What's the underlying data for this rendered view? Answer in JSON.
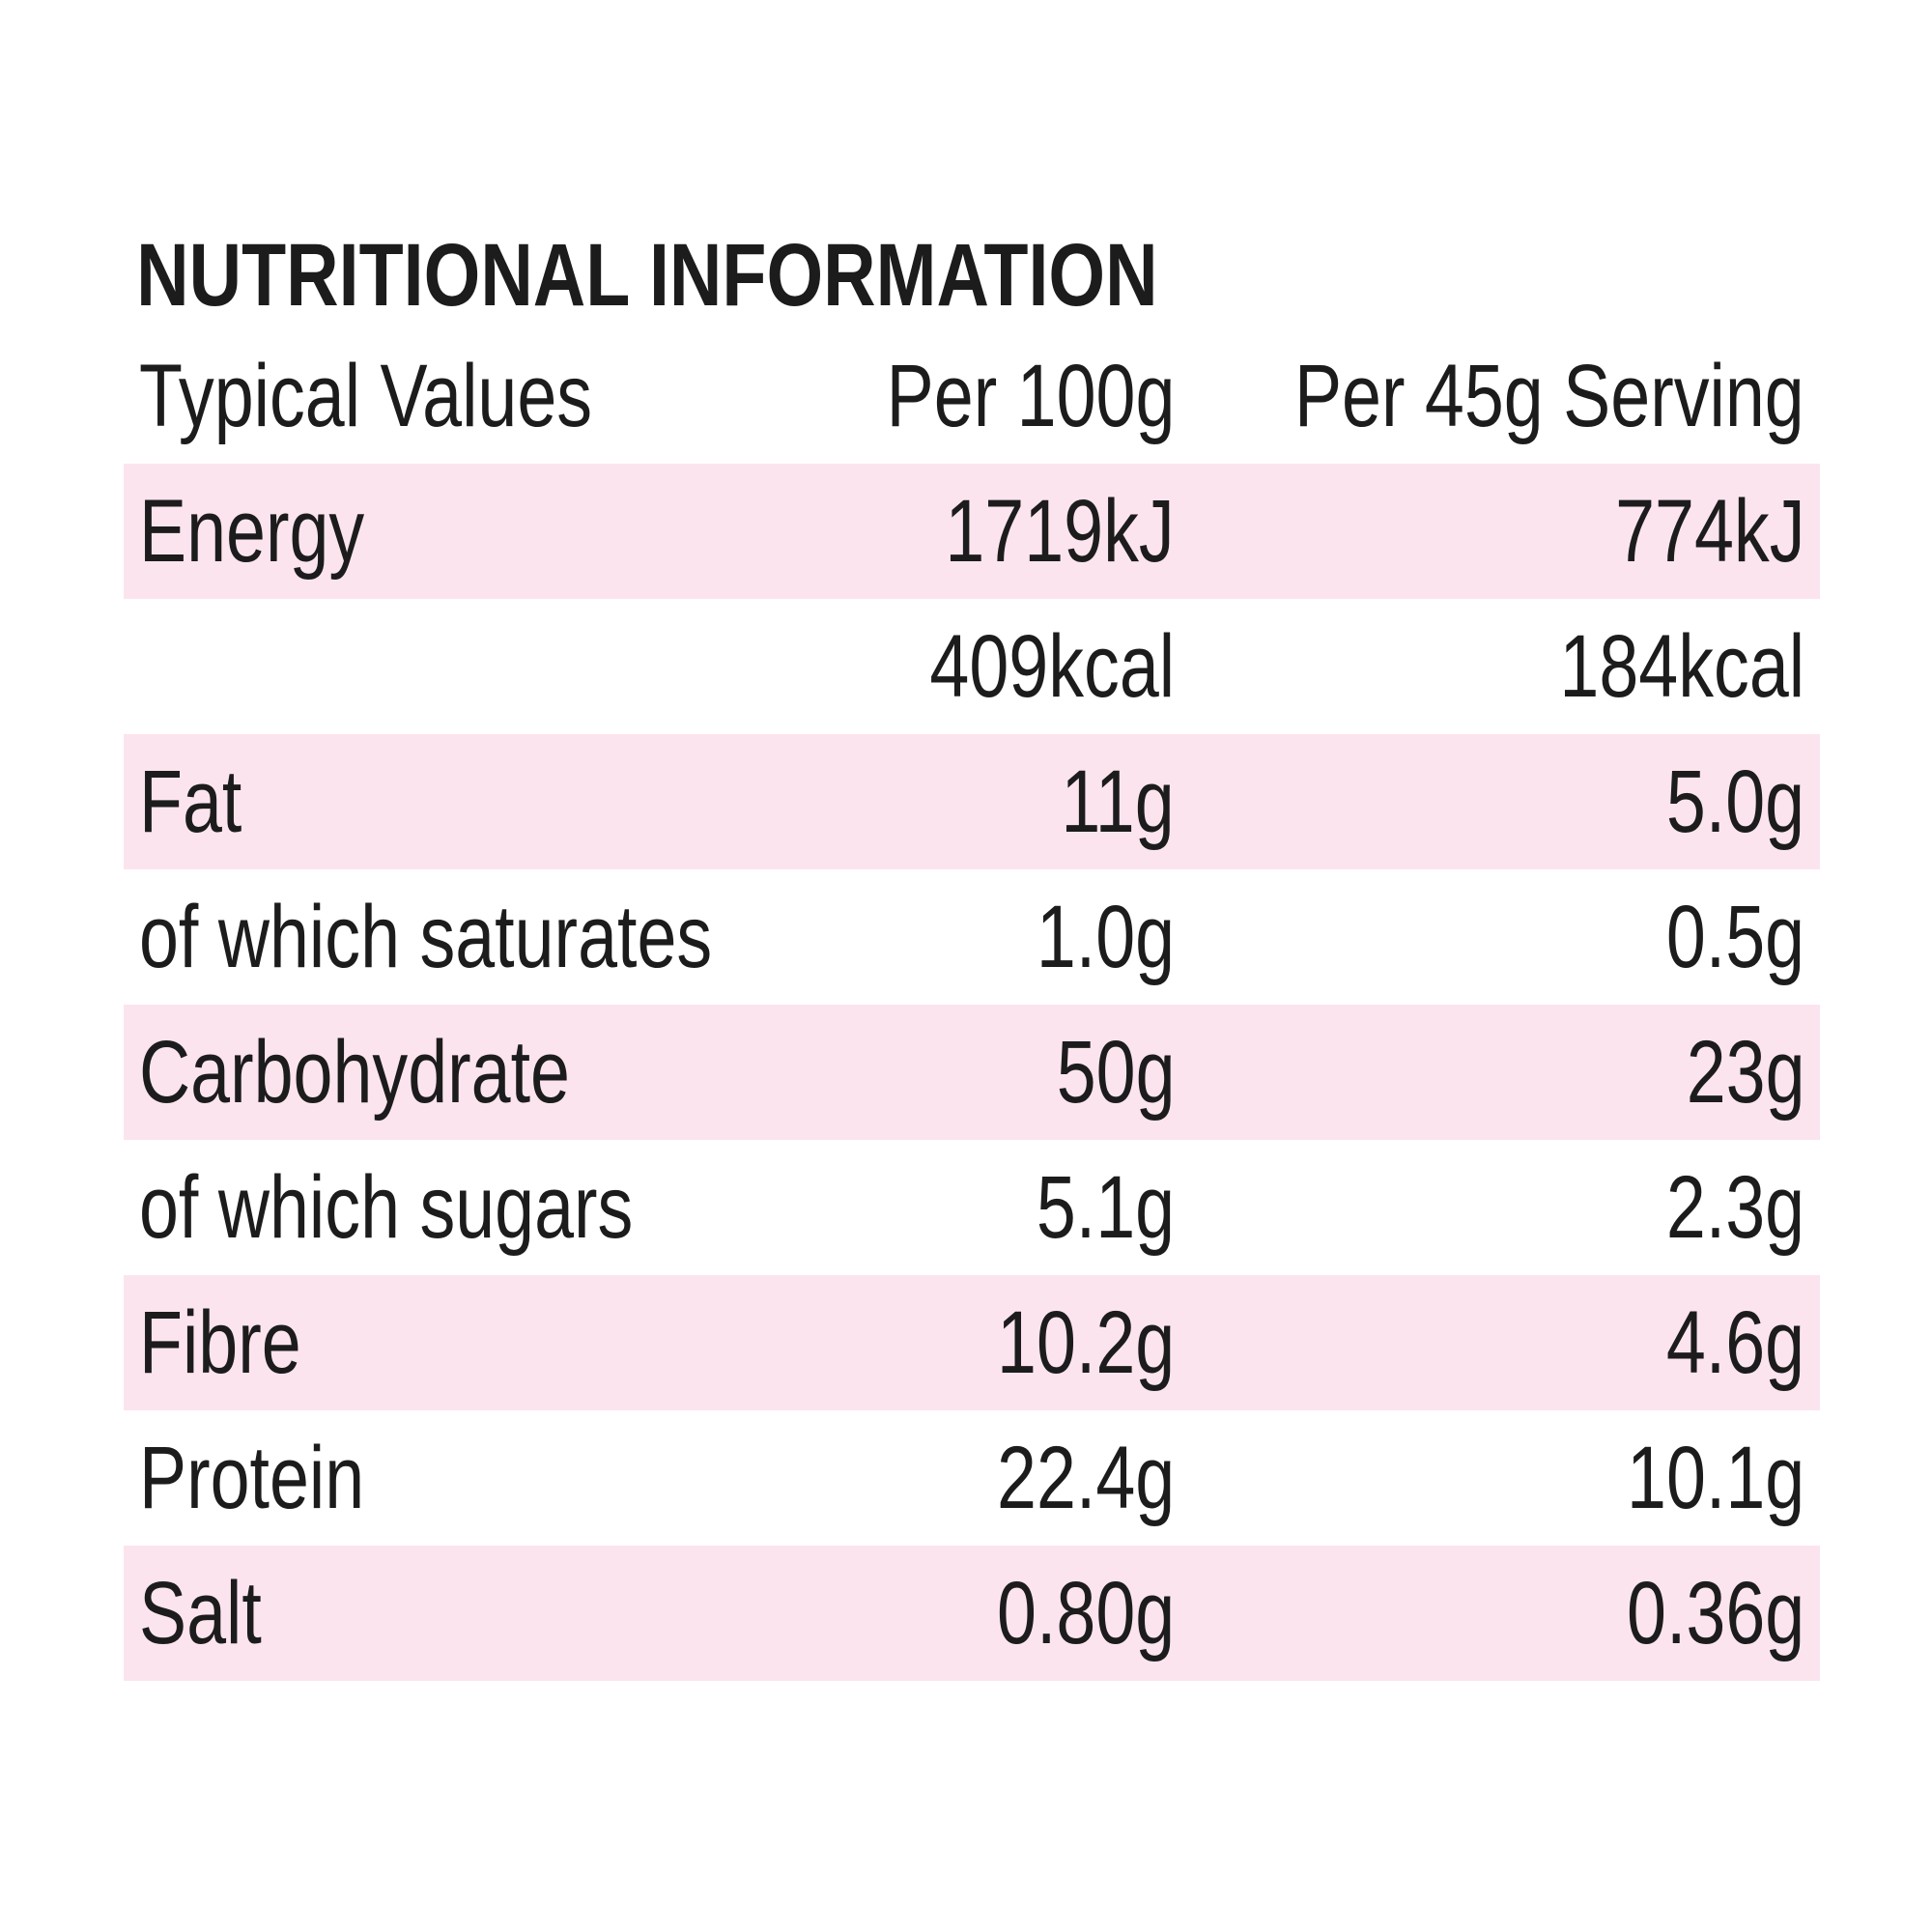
{
  "title": "NUTRITIONAL INFORMATION",
  "header": {
    "col1": "Typical Values",
    "col2": "Per 100g",
    "col3": "Per 45g Serving"
  },
  "rows": [
    {
      "name": "Energy",
      "per100": "1719kJ",
      "serving": "774kJ",
      "shaded": true
    },
    {
      "name": "",
      "per100": "409kcal",
      "serving": "184kcal",
      "shaded": false
    },
    {
      "name": "Fat",
      "per100": "11g",
      "serving": "5.0g",
      "shaded": true
    },
    {
      "name": "of which saturates",
      "per100": "1.0g",
      "serving": "0.5g",
      "shaded": false
    },
    {
      "name": "Carbohydrate",
      "per100": "50g",
      "serving": "23g",
      "shaded": true
    },
    {
      "name": "of which sugars",
      "per100": "5.1g",
      "serving": "2.3g",
      "shaded": false
    },
    {
      "name": "Fibre",
      "per100": "10.2g",
      "serving": "4.6g",
      "shaded": true
    },
    {
      "name": "Protein",
      "per100": "22.4g",
      "serving": "10.1g",
      "shaded": false
    },
    {
      "name": "Salt",
      "per100": "0.80g",
      "serving": "0.36g",
      "shaded": true
    }
  ],
  "colors": {
    "text": "#1c1c1c",
    "shade": "#fce4ef",
    "background": "#ffffff"
  }
}
